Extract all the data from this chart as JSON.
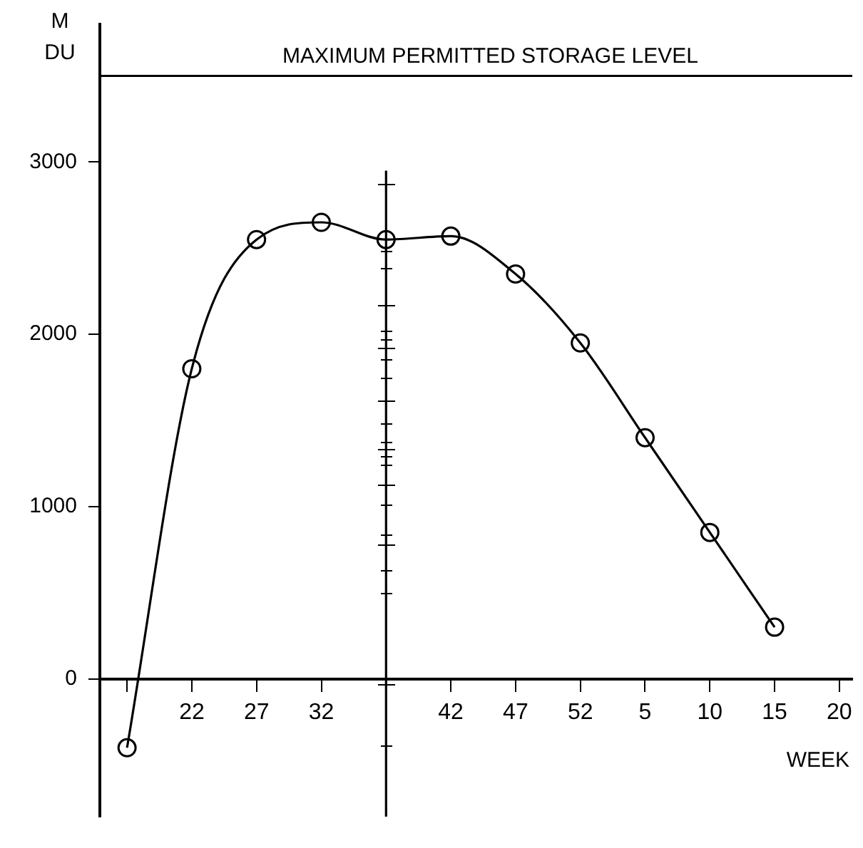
{
  "chart_data": {
    "type": "line",
    "xlabel": "WEEK",
    "ylabel": "M\nDU",
    "categories": [
      null,
      "22",
      "27",
      "32",
      null,
      "42",
      "47",
      "52",
      "5",
      "10",
      "15",
      "20"
    ],
    "series": [
      {
        "color": "#000000",
        "values": [
          -400,
          1800,
          2550,
          2650,
          2550,
          2570,
          2350,
          1950,
          1400,
          850,
          300,
          null
        ]
      }
    ],
    "marker": "circle",
    "ylim": [
      -800,
      3800
    ],
    "yticks": [
      0,
      1000,
      2000,
      3000
    ],
    "ref_lines": [
      {
        "axis": "y",
        "value": 3500,
        "label": "MAXIMUM PERMITTED STORAGE LEVEL",
        "color": "#000000"
      }
    ],
    "legend": false
  }
}
